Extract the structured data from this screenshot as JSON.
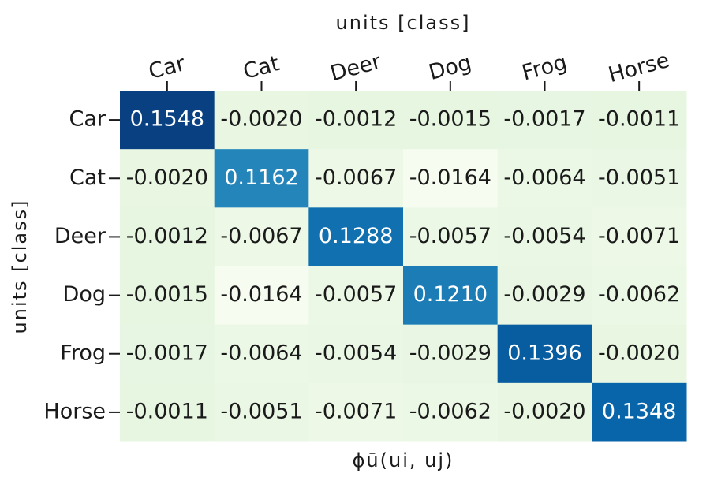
{
  "chart_data": {
    "type": "heatmap",
    "x_title": "units [class]",
    "y_title": "units [class]",
    "xlabel": "ϕū(ui, uj)",
    "x_categories": [
      "Car",
      "Cat",
      "Deer",
      "Dog",
      "Frog",
      "Horse"
    ],
    "y_categories": [
      "Car",
      "Cat",
      "Deer",
      "Dog",
      "Frog",
      "Horse"
    ],
    "values": [
      [
        0.1548,
        -0.002,
        -0.0012,
        -0.0015,
        -0.0017,
        -0.0011
      ],
      [
        -0.002,
        0.1162,
        -0.0067,
        -0.0164,
        -0.0064,
        -0.0051
      ],
      [
        -0.0012,
        -0.0067,
        0.1288,
        -0.0057,
        -0.0054,
        -0.0071
      ],
      [
        -0.0015,
        -0.0164,
        -0.0057,
        0.121,
        -0.0029,
        -0.0062
      ],
      [
        -0.0017,
        -0.0064,
        -0.0054,
        -0.0029,
        0.1396,
        -0.002
      ],
      [
        -0.0011,
        -0.0051,
        -0.0071,
        -0.0062,
        -0.002,
        0.1348
      ]
    ],
    "value_labels": [
      [
        "0.1548",
        "-0.0020",
        "-0.0012",
        "-0.0015",
        "-0.0017",
        "-0.0011"
      ],
      [
        "-0.0020",
        "0.1162",
        "-0.0067",
        "-0.0164",
        "-0.0064",
        "-0.0051"
      ],
      [
        "-0.0012",
        "-0.0067",
        "0.1288",
        "-0.0057",
        "-0.0054",
        "-0.0071"
      ],
      [
        "-0.0015",
        "-0.0164",
        "-0.0057",
        "0.1210",
        "-0.0029",
        "-0.0062"
      ],
      [
        "-0.0017",
        "-0.0064",
        "-0.0054",
        "-0.0029",
        "0.1396",
        "-0.0020"
      ],
      [
        "-0.0011",
        "-0.0051",
        "-0.0071",
        "-0.0062",
        "-0.0020",
        "0.1348"
      ]
    ],
    "colormap": [
      "#f7fcf0",
      "#e0f3db",
      "#ccebc5",
      "#a8ddb5",
      "#7bccc4",
      "#4eb3d3",
      "#2b8cbe",
      "#0868ac",
      "#084081"
    ]
  }
}
